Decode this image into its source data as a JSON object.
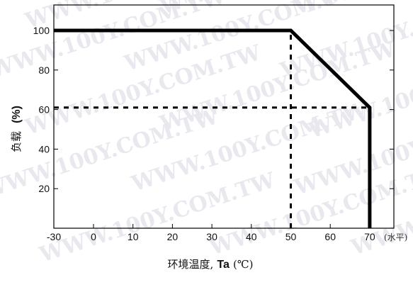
{
  "chart_data": {
    "type": "line",
    "title": "",
    "xlabel_main": "环境温度,",
    "xlabel_bold": "Ta",
    "xlabel_unit": "(℃)",
    "x_unit_label": "(水平)",
    "ylabel_main": "负载",
    "ylabel_bold": "(%)",
    "xlim": [
      -30,
      70
    ],
    "ylim": [
      0,
      110
    ],
    "x_ticks": [
      -30,
      0,
      10,
      20,
      30,
      40,
      50,
      60,
      70
    ],
    "x_tick_labels": [
      "-30",
      "0",
      "10",
      "20",
      "30",
      "40",
      "50",
      "60",
      "70"
    ],
    "y_ticks": [
      20,
      40,
      60,
      80,
      100
    ],
    "y_tick_labels": [
      "20",
      "40",
      "60",
      "80",
      "100"
    ],
    "grid": false,
    "series": [
      {
        "x": [
          -30,
          50,
          70,
          70
        ],
        "y": [
          100,
          100,
          61,
          0
        ]
      }
    ],
    "reference_lines": [
      {
        "style": "dashed",
        "x": [
          50,
          50
        ],
        "y": [
          0,
          100
        ]
      },
      {
        "style": "dashed",
        "x": [
          -30,
          70
        ],
        "y": [
          61,
          61
        ]
      }
    ],
    "watermark_text": "WWW.100Y.COM.TW"
  }
}
